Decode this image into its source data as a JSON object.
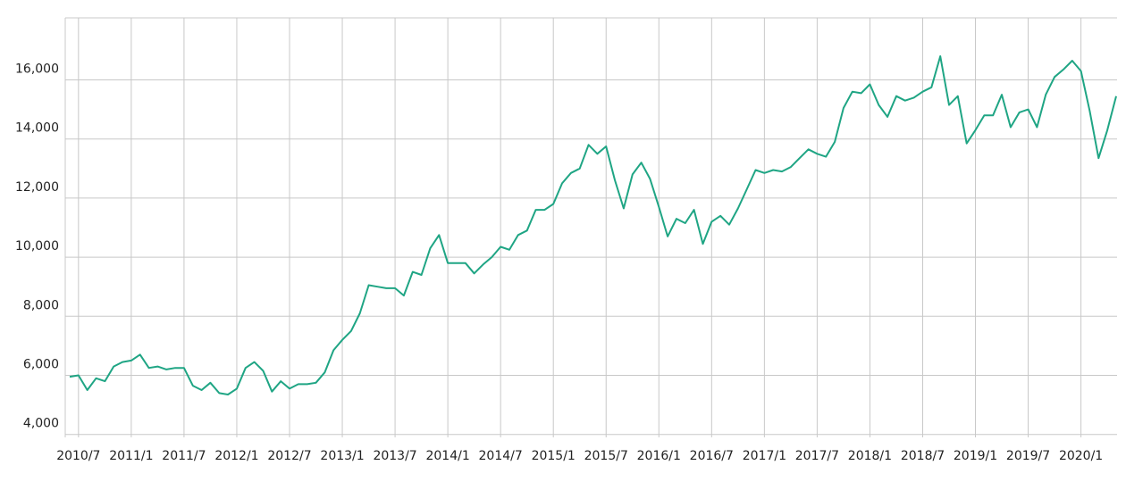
{
  "chart_data": {
    "type": "line",
    "categories": [
      null,
      "2010/7",
      null,
      null,
      null,
      null,
      null,
      "2011/1",
      null,
      null,
      null,
      null,
      null,
      "2011/7",
      null,
      null,
      null,
      null,
      null,
      "2012/1",
      null,
      null,
      null,
      null,
      null,
      "2012/7",
      null,
      null,
      null,
      null,
      null,
      "2013/1",
      null,
      null,
      null,
      null,
      null,
      "2013/7",
      null,
      null,
      null,
      null,
      null,
      "2014/1",
      null,
      null,
      null,
      null,
      null,
      "2014/7",
      null,
      null,
      null,
      null,
      null,
      "2015/1",
      null,
      null,
      null,
      null,
      null,
      "2015/7",
      null,
      null,
      null,
      null,
      null,
      "2016/1",
      null,
      null,
      null,
      null,
      null,
      "2016/7",
      null,
      null,
      null,
      null,
      null,
      "2017/1",
      null,
      null,
      null,
      null,
      null,
      "2017/7",
      null,
      null,
      null,
      null,
      null,
      "2018/1",
      null,
      null,
      null,
      null,
      null,
      "2018/7",
      null,
      null,
      null,
      null,
      null,
      "2019/1",
      null,
      null,
      null,
      null,
      null,
      "2019/7",
      null,
      null,
      null,
      null,
      null,
      "2020/1",
      null,
      null,
      null,
      null
    ],
    "values": [
      5950,
      6000,
      5500,
      5900,
      5800,
      6300,
      6450,
      6500,
      6700,
      6250,
      6300,
      6200,
      6250,
      6250,
      5650,
      5500,
      5750,
      5400,
      5350,
      5550,
      6250,
      6450,
      6150,
      5450,
      5800,
      5550,
      5700,
      5700,
      5750,
      6100,
      6850,
      7200,
      7500,
      8100,
      9050,
      9000,
      8950,
      8950,
      8700,
      9500,
      9400,
      10300,
      10750,
      9800,
      9800,
      9800,
      9450,
      9750,
      10000,
      10350,
      10250,
      10750,
      10900,
      11600,
      11600,
      11800,
      12500,
      12850,
      13000,
      13800,
      13500,
      13750,
      12600,
      11650,
      12800,
      13200,
      12650,
      11700,
      10700,
      11300,
      11150,
      11600,
      10450,
      11200,
      11400,
      11100,
      11650,
      12300,
      12950,
      12850,
      12950,
      12900,
      13050,
      13350,
      13650,
      13500,
      13400,
      13900,
      15050,
      15600,
      15550,
      15850,
      15150,
      14750,
      15450,
      15300,
      15400,
      15600,
      15750,
      16800,
      15150,
      15450,
      13850,
      14300,
      14800,
      14800,
      15500,
      14400,
      14900,
      15000,
      14400,
      15500,
      16100,
      16350,
      16650,
      16300,
      14950,
      13350,
      14300,
      15450
    ],
    "color": "#1fa584",
    "ylim": [
      3900,
      18100
    ],
    "yticks": [
      {
        "value": 4000,
        "label": "4,000"
      },
      {
        "value": 6000,
        "label": "6,000"
      },
      {
        "value": 8000,
        "label": "8,000"
      },
      {
        "value": 10000,
        "label": "10,000"
      },
      {
        "value": 12000,
        "label": "12,000"
      },
      {
        "value": 14000,
        "label": "14,000"
      },
      {
        "value": 16000,
        "label": "16,000"
      }
    ],
    "grid": true
  }
}
